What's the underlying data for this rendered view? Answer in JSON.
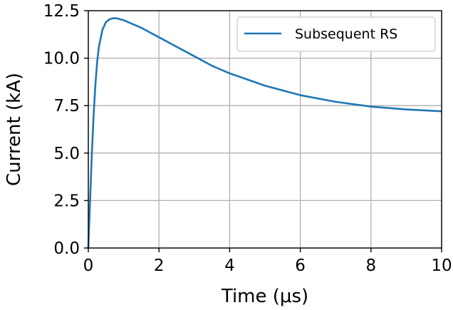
{
  "chart_data": {
    "type": "line",
    "xlabel": "Time (μs)",
    "ylabel": "Current (kA)",
    "xlim": [
      0,
      10
    ],
    "ylim": [
      0,
      12.5
    ],
    "x_ticks": [
      0,
      2,
      4,
      6,
      8,
      10
    ],
    "y_ticks": [
      0.0,
      2.5,
      5.0,
      7.5,
      10.0,
      12.5
    ],
    "x_tick_labels": [
      "0",
      "2",
      "4",
      "6",
      "8",
      "10"
    ],
    "y_tick_labels": [
      "0.0",
      "2.5",
      "5.0",
      "7.5",
      "10.0",
      "12.5"
    ],
    "grid": true,
    "legend_position": "upper right",
    "series": [
      {
        "name": "Subsequent RS",
        "color": "#1f77b4",
        "x": [
          0,
          0.05,
          0.1,
          0.15,
          0.2,
          0.25,
          0.3,
          0.4,
          0.5,
          0.6,
          0.7,
          0.8,
          0.9,
          1.0,
          1.25,
          1.5,
          2.0,
          2.5,
          3.0,
          3.5,
          4.0,
          5.0,
          6.0,
          7.0,
          8.0,
          9.0,
          10.0
        ],
        "y": [
          0,
          2.5,
          5.0,
          7.0,
          8.6,
          9.8,
          10.6,
          11.5,
          11.9,
          12.05,
          12.1,
          12.1,
          12.05,
          12.0,
          11.8,
          11.6,
          11.1,
          10.6,
          10.1,
          9.6,
          9.2,
          8.55,
          8.05,
          7.7,
          7.45,
          7.3,
          7.2
        ]
      }
    ]
  }
}
